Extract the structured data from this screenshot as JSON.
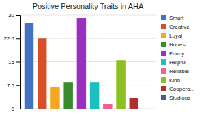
{
  "chart_data": {
    "type": "bar",
    "title": "Positive Personality Traits in AHA",
    "categories": [
      "Smart",
      "Creative",
      "Loyal",
      "Honest",
      "Funny",
      "Helpful",
      "Reliable",
      "Kind",
      "Coopera...",
      "Studious"
    ],
    "values": [
      27.5,
      22.5,
      7.0,
      8.5,
      29.0,
      8.5,
      1.5,
      15.5,
      3.5,
      0
    ],
    "colors": [
      "#4472C4",
      "#D94E2A",
      "#F5A623",
      "#3A8A2E",
      "#9B2FBF",
      "#1ABFBF",
      "#F06090",
      "#8CC020",
      "#B03030",
      "#4A5A90"
    ],
    "ylim": [
      0,
      30
    ],
    "yticks": [
      0,
      7.5,
      15,
      22.5,
      30
    ],
    "grid": true,
    "legend": "right",
    "tick_labels": "y"
  }
}
